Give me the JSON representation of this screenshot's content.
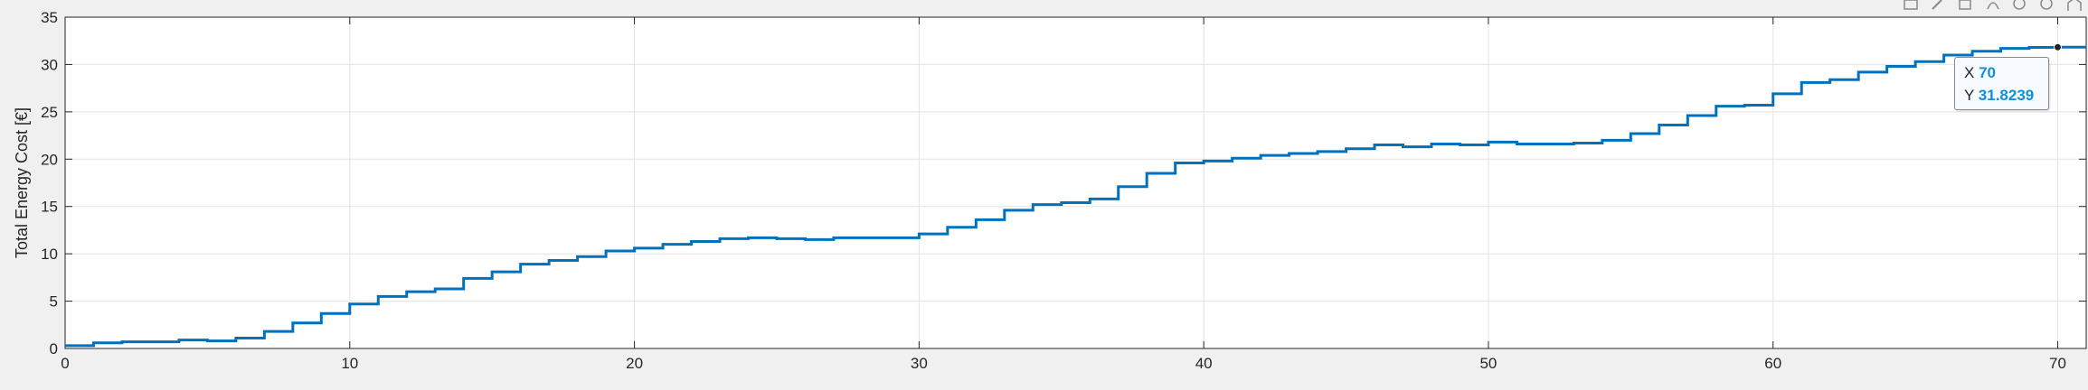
{
  "chart_data": {
    "type": "line",
    "title": "",
    "xlabel": "",
    "ylabel": "Total Energy Cost [€]",
    "xlim": [
      0,
      71
    ],
    "ylim": [
      0,
      35
    ],
    "xticks": [
      "0",
      "10",
      "20",
      "30",
      "40",
      "50",
      "60",
      "70"
    ],
    "yticks": [
      "0",
      "5",
      "10",
      "15",
      "20",
      "25",
      "30",
      "35"
    ],
    "grid": true,
    "step": true,
    "series": [
      {
        "color": "#0072BD",
        "x": [
          0,
          1,
          2,
          3,
          4,
          5,
          6,
          7,
          8,
          9,
          10,
          11,
          12,
          13,
          14,
          15,
          16,
          17,
          18,
          19,
          20,
          21,
          22,
          23,
          24,
          25,
          26,
          27,
          28,
          29,
          30,
          31,
          32,
          33,
          34,
          35,
          36,
          37,
          38,
          39,
          40,
          41,
          42,
          43,
          44,
          45,
          46,
          47,
          48,
          49,
          50,
          51,
          52,
          53,
          54,
          55,
          56,
          57,
          58,
          59,
          60,
          61,
          62,
          63,
          64,
          65,
          66,
          67,
          68,
          69,
          70
        ],
        "values": [
          0.3,
          0.6,
          0.7,
          0.7,
          0.9,
          0.8,
          1.1,
          1.8,
          2.7,
          3.7,
          4.7,
          5.5,
          6.0,
          6.3,
          7.4,
          8.1,
          8.9,
          9.3,
          9.7,
          10.3,
          10.6,
          11.0,
          11.3,
          11.6,
          11.7,
          11.6,
          11.5,
          11.7,
          11.7,
          11.7,
          12.1,
          12.8,
          13.6,
          14.6,
          15.2,
          15.4,
          15.8,
          17.1,
          18.5,
          19.6,
          19.8,
          20.1,
          20.4,
          20.6,
          20.8,
          21.1,
          21.5,
          21.3,
          21.6,
          21.5,
          21.8,
          21.6,
          21.6,
          21.7,
          22.0,
          22.7,
          23.6,
          24.6,
          25.6,
          25.7,
          26.9,
          28.1,
          28.4,
          29.2,
          29.8,
          30.3,
          31.0,
          31.4,
          31.7,
          31.8,
          31.8239
        ]
      }
    ],
    "datatip": {
      "x_label": "X",
      "x_value": "70",
      "y_label": "Y",
      "y_value": "31.8239"
    }
  },
  "toolbar": {
    "icons": [
      "save-icon",
      "brush-icon",
      "data-cursor-icon",
      "pan-icon",
      "zoom-in-icon",
      "zoom-out-icon",
      "home-icon"
    ]
  }
}
